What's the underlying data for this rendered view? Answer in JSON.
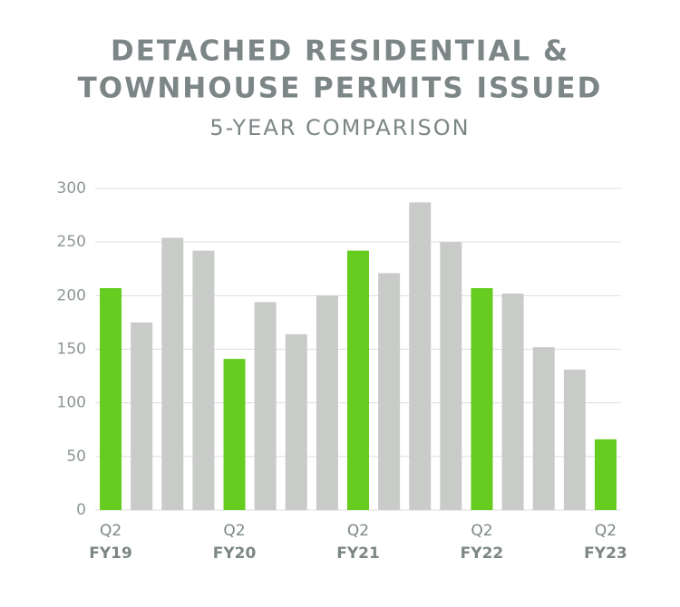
{
  "chart_data": {
    "type": "bar",
    "title": [
      "DETACHED RESIDENTIAL &",
      "TOWNHOUSE PERMITS ISSUED"
    ],
    "subtitle": "5-YEAR COMPARISON",
    "categories": [
      [
        "Q2",
        "FY19"
      ],
      null,
      null,
      null,
      [
        "Q2",
        "FY20"
      ],
      null,
      null,
      null,
      [
        "Q2",
        "FY21"
      ],
      null,
      null,
      null,
      [
        "Q2",
        "FY22"
      ],
      null,
      null,
      null,
      [
        "Q2",
        "FY23"
      ]
    ],
    "values": [
      207,
      175,
      254,
      242,
      141,
      194,
      164,
      200,
      242,
      221,
      287,
      250,
      207,
      202,
      152,
      131,
      66
    ],
    "colors": [
      "#66cc1f",
      "#c9cbc9",
      "#c9cbc9",
      "#c9cbc9",
      "#66cc1f",
      "#c9cbc9",
      "#c9cbc9",
      "#c9cbc9",
      "#66cc1f",
      "#c9cbc9",
      "#c9cbc9",
      "#c9cbc9",
      "#66cc1f",
      "#c9cbc9",
      "#c9cbc9",
      "#c9cbc9",
      "#66cc1f"
    ],
    "ylim": [
      0,
      300
    ],
    "yticks": [
      0,
      50,
      100,
      150,
      200,
      250,
      300
    ],
    "grid": true
  }
}
